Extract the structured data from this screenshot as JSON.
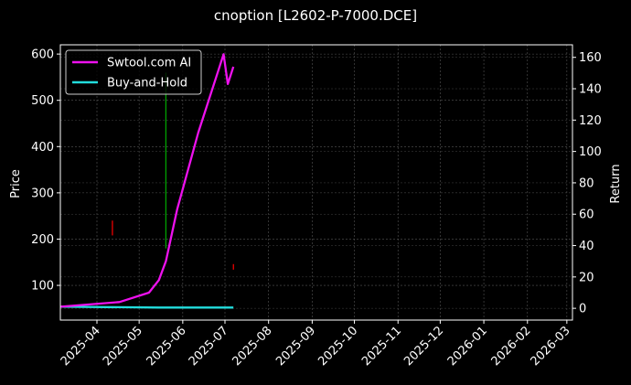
{
  "chart_data": {
    "type": "line",
    "title": "cnoption [L2602-P-7000.DCE]",
    "ylabel_left": "Price",
    "ylabel_right": "Return",
    "grid": true,
    "legend_position": "top-left",
    "x_ticks": [
      "2025-04",
      "2025-05",
      "2025-06",
      "2025-07",
      "2025-08",
      "2025-09",
      "2025-10",
      "2025-11",
      "2025-12",
      "2026-01",
      "2026-02",
      "2026-03"
    ],
    "y_left_ticks": [
      100,
      200,
      300,
      400,
      500,
      600
    ],
    "y_right_ticks": [
      0,
      20,
      40,
      60,
      80,
      100,
      120,
      140,
      160
    ],
    "xlim": [
      "2025-03-06",
      "2026-03-05"
    ],
    "ylim_left": [
      25,
      620
    ],
    "ylim_right": [
      -7.5,
      168
    ],
    "series": [
      {
        "name": "Swtool.com AI",
        "axis": "right",
        "color": "#ee11ee",
        "x": [
          "2025-03-06",
          "2025-04-17",
          "2025-05-08",
          "2025-05-15",
          "2025-05-20",
          "2025-05-28",
          "2025-06-12",
          "2025-06-30",
          "2025-07-03",
          "2025-07-07"
        ],
        "y": [
          1,
          4,
          10,
          18,
          30,
          63,
          112,
          162,
          143,
          154
        ]
      },
      {
        "name": "Buy-and-Hold",
        "axis": "right",
        "color": "#22dddd",
        "x": [
          "2025-03-06",
          "2025-05-15",
          "2025-07-07"
        ],
        "y": [
          1,
          0.5,
          0.5
        ]
      }
    ],
    "price_markers": [
      {
        "x": "2025-04-12",
        "y_low": 208,
        "y_high": 240,
        "color": "#ff0000"
      },
      {
        "x": "2025-05-20",
        "y_low": 180,
        "y_high": 560,
        "color": "#00aa00"
      },
      {
        "x": "2025-07-07",
        "y_low": 134,
        "y_high": 146,
        "color": "#ff0000"
      }
    ]
  }
}
